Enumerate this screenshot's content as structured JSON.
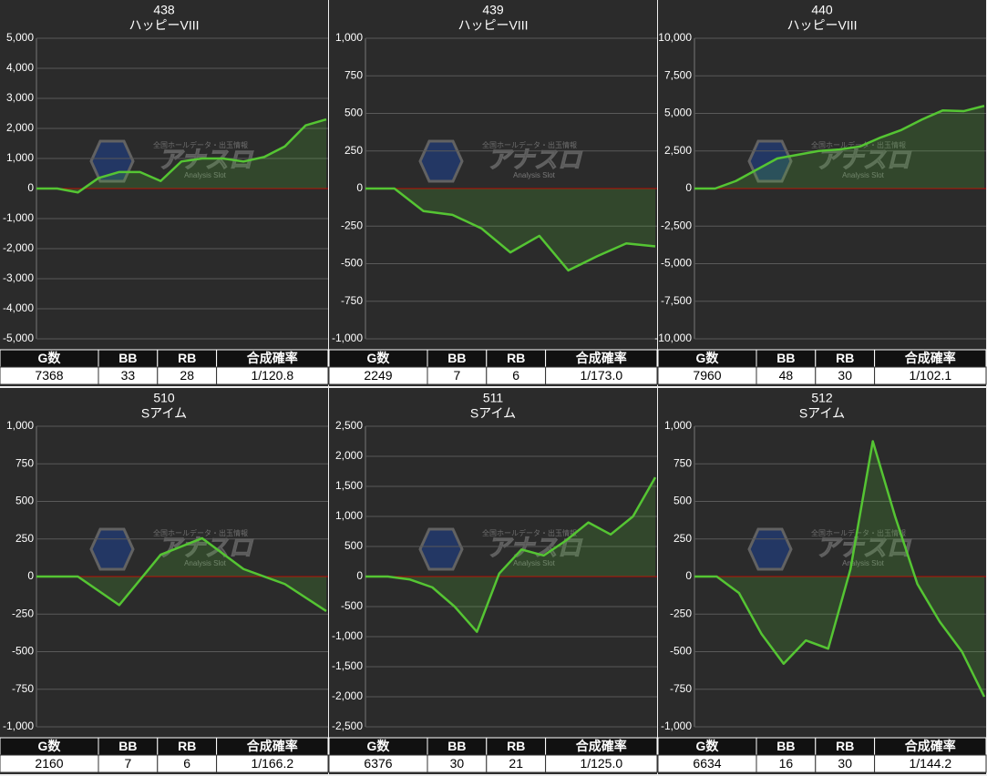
{
  "watermark": {
    "tagline": "全国ホールデータ・出玉情報",
    "title": "アナスロ",
    "subtitle": "Analysis Slot"
  },
  "chart_data": [
    {
      "type": "line",
      "title": "438",
      "subtitle": "ハッピーVIII",
      "color": "#55c533",
      "zero_line_color": "#c00000",
      "grid": true,
      "values": [
        0,
        0,
        -130,
        350,
        550,
        550,
        250,
        900,
        1000,
        1000,
        900,
        1050,
        1400,
        2100,
        2300
      ],
      "ylim": [
        -5000,
        5000
      ],
      "yticks": [
        {
          "value": -5000,
          "label": "-5,000"
        },
        {
          "value": -4000,
          "label": "-4,000"
        },
        {
          "value": -3000,
          "label": "-3,000"
        },
        {
          "value": -2000,
          "label": "-2,000"
        },
        {
          "value": -1000,
          "label": "-1,000"
        },
        0,
        {
          "value": 1000,
          "label": "1,000"
        },
        {
          "value": 2000,
          "label": "2,000"
        },
        {
          "value": 3000,
          "label": "3,000"
        },
        {
          "value": 4000,
          "label": "4,000"
        },
        {
          "value": 5000,
          "label": "5,000"
        }
      ],
      "table": {
        "columns": [
          "G数",
          "BB",
          "RB",
          "合成確率"
        ],
        "row": [
          7368,
          33,
          28,
          "1/120.8"
        ]
      }
    },
    {
      "type": "line",
      "title": "439",
      "subtitle": "ハッピーVIII",
      "color": "#55c533",
      "zero_line_color": "#c00000",
      "grid": true,
      "values": [
        0,
        0,
        -150,
        -175,
        -265,
        -425,
        -315,
        -545,
        -450,
        -365,
        -385
      ],
      "ylim": [
        -1000,
        1000
      ],
      "yticks": [
        {
          "value": -1000,
          "label": "-1,000"
        },
        -750,
        -500,
        -250,
        0,
        250,
        500,
        750,
        {
          "value": 1000,
          "label": "1,000"
        }
      ],
      "table": {
        "columns": [
          "G数",
          "BB",
          "RB",
          "合成確率"
        ],
        "row": [
          2249,
          7,
          6,
          "1/173.0"
        ]
      }
    },
    {
      "type": "line",
      "title": "440",
      "subtitle": "ハッピーVIII",
      "color": "#55c533",
      "zero_line_color": "#c00000",
      "grid": true,
      "values": [
        0,
        0,
        500,
        1250,
        2000,
        2250,
        2500,
        2600,
        2800,
        3400,
        3900,
        4600,
        5200,
        5150,
        5500
      ],
      "ylim": [
        -10000,
        10000
      ],
      "yticks": [
        {
          "value": -10000,
          "label": "-10,000"
        },
        {
          "value": -7500,
          "label": "-7,500"
        },
        {
          "value": -5000,
          "label": "-5,000"
        },
        {
          "value": -2500,
          "label": "-2,500"
        },
        0,
        {
          "value": 2500,
          "label": "2,500"
        },
        {
          "value": 5000,
          "label": "5,000"
        },
        {
          "value": 7500,
          "label": "7,500"
        },
        {
          "value": 10000,
          "label": "10,000"
        }
      ],
      "table": {
        "columns": [
          "G数",
          "BB",
          "RB",
          "合成確率"
        ],
        "row": [
          7960,
          48,
          30,
          "1/102.1"
        ]
      }
    },
    {
      "type": "line",
      "title": "510",
      "subtitle": "Sアイム",
      "color": "#55c533",
      "zero_line_color": "#c00000",
      "grid": true,
      "values": [
        0,
        0,
        -190,
        145,
        255,
        50,
        -50,
        -230
      ],
      "ylim": [
        -1000,
        1000
      ],
      "yticks": [
        {
          "value": -1000,
          "label": "-1,000"
        },
        -750,
        -500,
        -250,
        0,
        250,
        500,
        750,
        {
          "value": 1000,
          "label": "1,000"
        }
      ],
      "table": {
        "columns": [
          "G数",
          "BB",
          "RB",
          "合成確率"
        ],
        "row": [
          2160,
          7,
          6,
          "1/166.2"
        ]
      }
    },
    {
      "type": "line",
      "title": "511",
      "subtitle": "Sアイム",
      "color": "#55c533",
      "zero_line_color": "#c00000",
      "grid": true,
      "values": [
        0,
        0,
        -50,
        -180,
        -500,
        -920,
        50,
        450,
        350,
        600,
        900,
        700,
        1000,
        1650
      ],
      "ylim": [
        -2500,
        2500
      ],
      "yticks": [
        {
          "value": -2500,
          "label": "-2,500"
        },
        {
          "value": -2000,
          "label": "-2,000"
        },
        {
          "value": -1500,
          "label": "-1,500"
        },
        {
          "value": -1000,
          "label": "-1,000"
        },
        -500,
        0,
        500,
        {
          "value": 1000,
          "label": "1,000"
        },
        {
          "value": 1500,
          "label": "1,500"
        },
        {
          "value": 2000,
          "label": "2,000"
        },
        {
          "value": 2500,
          "label": "2,500"
        }
      ],
      "table": {
        "columns": [
          "G数",
          "BB",
          "RB",
          "合成確率"
        ],
        "row": [
          6376,
          30,
          21,
          "1/125.0"
        ]
      }
    },
    {
      "type": "line",
      "title": "512",
      "subtitle": "Sアイム",
      "color": "#55c533",
      "zero_line_color": "#c00000",
      "grid": true,
      "values": [
        0,
        0,
        -110,
        -380,
        -580,
        -425,
        -480,
        50,
        900,
        400,
        -50,
        -300,
        -500,
        -800
      ],
      "ylim": [
        -1000,
        1000
      ],
      "yticks": [
        {
          "value": -1000,
          "label": "-1,000"
        },
        -750,
        -500,
        -250,
        0,
        250,
        500,
        750,
        {
          "value": 1000,
          "label": "1,000"
        }
      ],
      "table": {
        "columns": [
          "G数",
          "BB",
          "RB",
          "合成確率"
        ],
        "row": [
          6634,
          16,
          30,
          "1/144.2"
        ]
      }
    }
  ]
}
